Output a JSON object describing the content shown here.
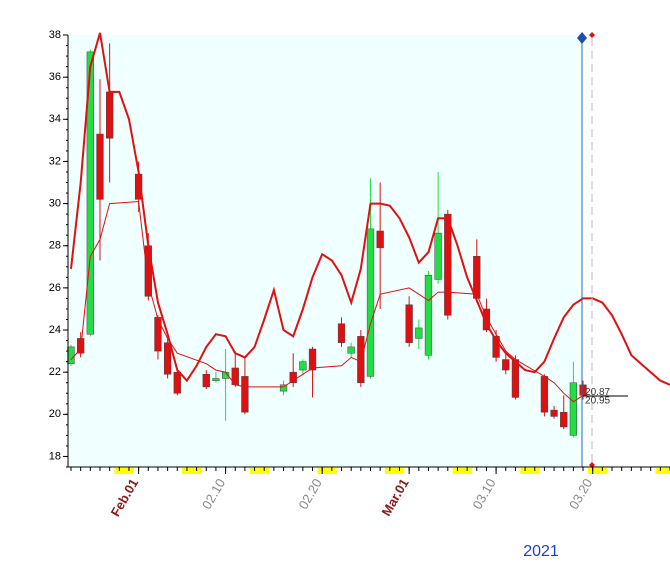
{
  "chart_data": {
    "type": "candlestick",
    "xlabel": "2021",
    "x": [
      "2021-01-25",
      "2021-01-26",
      "2021-01-27",
      "2021-01-28",
      "2021-01-29",
      "2021-02-01",
      "2021-02-02",
      "2021-02-03",
      "2021-02-04",
      "2021-02-05",
      "2021-02-08",
      "2021-02-09",
      "2021-02-10",
      "2021-02-11",
      "2021-02-12",
      "2021-02-16",
      "2021-02-17",
      "2021-02-18",
      "2021-02-19",
      "2021-02-22",
      "2021-02-23",
      "2021-02-24",
      "2021-02-25",
      "2021-02-26",
      "2021-03-01",
      "2021-03-02",
      "2021-03-03",
      "2021-03-04",
      "2021-03-05",
      "2021-03-08",
      "2021-03-09",
      "2021-03-10",
      "2021-03-11",
      "2021-03-12",
      "2021-03-15",
      "2021-03-16",
      "2021-03-17",
      "2021-03-18",
      "2021-03-19"
    ],
    "open": [
      22.4,
      23.6,
      23.8,
      33.3,
      35.3,
      31.4,
      28.0,
      24.6,
      23.4,
      22.0,
      21.9,
      21.6,
      21.7,
      22.2,
      21.8,
      21.1,
      22.0,
      22.1,
      23.1,
      24.3,
      22.9,
      23.7,
      21.8,
      28.7,
      25.2,
      23.6,
      22.8,
      26.4,
      29.5,
      27.5,
      25.0,
      23.7,
      22.6,
      22.6,
      21.8,
      20.2,
      20.1,
      19.0,
      21.4
    ],
    "high": [
      23.3,
      23.9,
      37.3,
      35.9,
      37.6,
      32.0,
      28.6,
      24.7,
      23.6,
      22.2,
      22.1,
      22.0,
      23.1,
      23.0,
      22.7,
      21.6,
      22.9,
      22.6,
      23.2,
      24.6,
      23.4,
      24.0,
      31.2,
      31.0,
      25.6,
      24.5,
      26.8,
      31.5,
      29.7,
      28.3,
      25.5,
      24.0,
      23.0,
      22.8,
      21.9,
      20.4,
      20.9,
      22.5,
      21.6
    ],
    "low": [
      22.3,
      22.7,
      23.7,
      27.3,
      31.0,
      29.6,
      25.4,
      22.6,
      21.7,
      20.9,
      21.2,
      21.5,
      19.7,
      21.3,
      20.0,
      20.9,
      21.3,
      21.9,
      20.8,
      23.2,
      22.7,
      21.3,
      21.7,
      25.0,
      23.2,
      23.1,
      22.6,
      26.2,
      24.5,
      25.3,
      23.9,
      22.5,
      21.9,
      20.7,
      19.9,
      19.8,
      19.3,
      18.9,
      20.7
    ],
    "close": [
      23.2,
      22.9,
      37.2,
      30.2,
      33.1,
      30.2,
      25.6,
      23.0,
      21.9,
      21.0,
      21.3,
      21.7,
      22.0,
      21.4,
      20.1,
      21.4,
      21.5,
      22.5,
      22.1,
      23.4,
      23.2,
      21.5,
      28.8,
      27.9,
      23.4,
      24.1,
      26.6,
      28.6,
      24.7,
      25.5,
      24.0,
      22.7,
      22.1,
      20.8,
      20.1,
      19.9,
      19.4,
      21.5,
      20.9
    ],
    "up_color": "#22dd44",
    "down_color": "#dd1111",
    "lines": [
      {
        "color": "#e01010",
        "width": 2,
        "x": [
          "2021-01-25",
          "2021-01-26",
          "2021-01-27",
          "2021-01-28",
          "2021-01-29",
          "2021-01-30",
          "2021-01-31",
          "2021-02-01",
          "2021-02-02",
          "2021-02-03",
          "2021-02-04",
          "2021-02-05",
          "2021-02-06",
          "2021-02-07",
          "2021-02-08",
          "2021-02-09",
          "2021-02-10",
          "2021-02-11",
          "2021-02-12",
          "2021-02-13",
          "2021-02-14",
          "2021-02-15",
          "2021-02-16",
          "2021-02-17",
          "2021-02-18",
          "2021-02-19",
          "2021-02-20",
          "2021-02-21",
          "2021-02-22",
          "2021-02-23",
          "2021-02-24",
          "2021-02-25",
          "2021-02-26",
          "2021-02-27",
          "2021-02-28",
          "2021-03-01",
          "2021-03-02",
          "2021-03-03",
          "2021-03-04",
          "2021-03-05",
          "2021-03-06",
          "2021-03-07",
          "2021-03-08",
          "2021-03-09",
          "2021-03-10",
          "2021-03-11",
          "2021-03-12",
          "2021-03-13",
          "2021-03-14",
          "2021-03-15",
          "2021-03-16",
          "2021-03-17",
          "2021-03-18",
          "2021-03-19",
          "2021-03-20",
          "2021-03-21",
          "2021-03-22",
          "2021-03-23",
          "2021-03-24",
          "2021-03-25",
          "2021-03-26",
          "2021-03-27",
          "2021-03-28"
        ],
        "values": [
          26.9,
          31.0,
          36.5,
          38.1,
          35.3,
          35.3,
          34.0,
          31.5,
          28.0,
          25.3,
          23.8,
          22.1,
          21.6,
          22.3,
          23.2,
          23.8,
          23.7,
          22.9,
          22.7,
          23.2,
          24.5,
          25.9,
          24.0,
          23.7,
          25.0,
          26.5,
          27.6,
          27.3,
          26.6,
          25.3,
          26.9,
          30.0,
          30.0,
          29.9,
          29.3,
          28.4,
          27.2,
          27.7,
          29.3,
          29.3,
          28.0,
          26.5,
          25.4,
          24.3,
          23.5,
          22.9,
          22.5,
          22.1,
          22.0,
          22.5,
          23.6,
          24.6,
          25.2,
          25.5,
          25.5,
          25.3,
          24.7,
          23.8,
          22.8,
          22.4,
          22.0,
          21.6,
          21.4
        ]
      },
      {
        "color": "#e01010",
        "width": 1,
        "x": [
          "2021-01-25",
          "2021-01-26",
          "2021-01-27",
          "2021-01-28",
          "2021-01-29",
          "2021-02-01",
          "2021-02-02",
          "2021-02-03",
          "2021-02-04",
          "2021-02-05",
          "2021-02-08",
          "2021-02-09",
          "2021-02-10",
          "2021-02-11",
          "2021-02-12",
          "2021-02-16",
          "2021-02-17",
          "2021-02-18",
          "2021-02-19",
          "2021-02-22",
          "2021-02-23",
          "2021-02-24",
          "2021-02-25",
          "2021-02-26",
          "2021-03-01",
          "2021-03-02",
          "2021-03-03",
          "2021-03-04",
          "2021-03-05",
          "2021-03-08",
          "2021-03-09",
          "2021-03-10",
          "2021-03-11",
          "2021-03-12",
          "2021-03-15",
          "2021-03-16",
          "2021-03-17",
          "2021-03-18",
          "2021-03-19"
        ],
        "values": [
          22.6,
          23.1,
          27.5,
          28.3,
          30.0,
          30.1,
          26.2,
          24.5,
          23.6,
          22.9,
          22.4,
          22.1,
          22.0,
          21.4,
          21.3,
          21.3,
          21.6,
          21.9,
          22.2,
          22.3,
          22.7,
          22.5,
          24.3,
          25.7,
          26.0,
          25.7,
          25.4,
          25.8,
          25.8,
          25.7,
          24.6,
          23.8,
          23.0,
          22.6,
          21.8,
          21.5,
          21.0,
          20.6,
          20.9
        ]
      }
    ],
    "annotations": [
      {
        "text": "20.87",
        "y": 20.87
      },
      {
        "text": "20.95",
        "y": 20.95
      }
    ],
    "xlim": [
      "2021-01-25",
      "2021-03-28"
    ],
    "xticks": [
      {
        "value": "2021-02-01",
        "label": "Feb.01"
      },
      {
        "value": "2021-02-10",
        "label": "02.10"
      },
      {
        "value": "2021-02-20",
        "label": "02.20"
      },
      {
        "value": "2021-03-01",
        "label": "Mar.01"
      },
      {
        "value": "2021-03-10",
        "label": "03.10"
      },
      {
        "value": "2021-03-20",
        "label": "03.20"
      }
    ],
    "ylim": [
      17.5,
      38
    ],
    "yticks": [
      18,
      20,
      22,
      24,
      26,
      28,
      30,
      32,
      34,
      36,
      38
    ]
  }
}
